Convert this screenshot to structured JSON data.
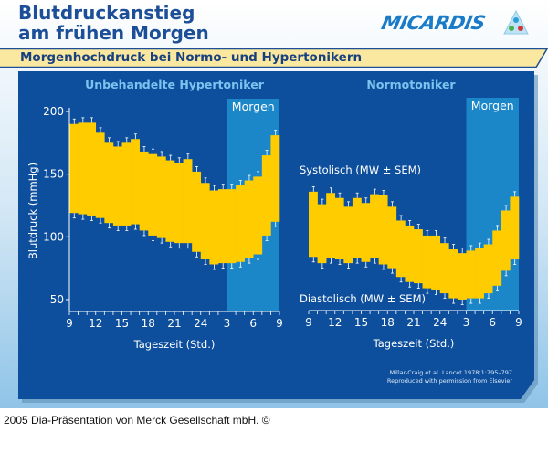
{
  "slide": {
    "title_line1": "Blutdruckanstieg",
    "title_line2": "am frühen Morgen",
    "subtitle": "Morgenhochdruck bei Normo- und Hypertonikern",
    "logo_text": "MICARDIS",
    "citation_line1": "Millar-Craig et al. Lancet 1978;1:795–797",
    "citation_line2": "Reproduced with permission from Elsevier",
    "footer": "2005 Dia-Präsentation von Merck Gesellschaft mbH. ©"
  },
  "colors": {
    "panel": "#0d4f9c",
    "morning_band": "#1b87c9",
    "bp_range": "#ffcc00",
    "title": "#1c4f98",
    "chart_title": "#7cc4ef",
    "banner": "#fbe8a0"
  },
  "chart_data": [
    {
      "type": "area",
      "title": "Unbehandelte Hypertoniker",
      "xlabel": "Tageszeit (Std.)",
      "ylabel": "Blutdruck (mmHg)",
      "ylim": [
        50,
        200
      ],
      "yticks": [
        "200",
        "150",
        "100",
        "50"
      ],
      "xticks": [
        "9",
        "12",
        "15",
        "18",
        "21",
        "24",
        "3",
        "6",
        "9"
      ],
      "hours": [
        9,
        10,
        11,
        12,
        13,
        14,
        15,
        16,
        17,
        18,
        19,
        20,
        21,
        22,
        23,
        24,
        1,
        2,
        3,
        4,
        5,
        6,
        7,
        8
      ],
      "highlight": {
        "label": "Morgen",
        "from": 3,
        "to": 9
      },
      "sem_approx": 4,
      "series": [
        {
          "name": "Systolisch (MW ± SEM)",
          "values": [
            190,
            191,
            191,
            183,
            175,
            172,
            175,
            178,
            168,
            166,
            164,
            161,
            159,
            162,
            152,
            143,
            137,
            138,
            138,
            141,
            145,
            148,
            165,
            181
          ]
        },
        {
          "name": "Diastolisch (MW ± SEM)",
          "values": [
            119,
            118,
            117,
            115,
            111,
            109,
            109,
            110,
            105,
            101,
            99,
            96,
            95,
            95,
            88,
            82,
            78,
            79,
            79,
            80,
            83,
            86,
            101,
            112
          ]
        }
      ],
      "grid": false
    },
    {
      "type": "area",
      "title": "Normotoniker",
      "xlabel": "Tageszeit (Std.)",
      "ylim": [
        50,
        200
      ],
      "xticks": [
        "9",
        "12",
        "15",
        "18",
        "21",
        "24",
        "3",
        "6",
        "9"
      ],
      "hours": [
        9,
        10,
        11,
        12,
        13,
        14,
        15,
        16,
        17,
        18,
        19,
        20,
        21,
        22,
        23,
        24,
        1,
        2,
        3,
        4,
        5,
        6,
        7,
        8
      ],
      "highlight": {
        "label": "Morgen",
        "from": 3,
        "to": 9
      },
      "sem_approx": 4,
      "series_labels": {
        "systolic": "Systolisch (MW ± SEM)",
        "diastolic": "Diastolisch (MW ± SEM)"
      },
      "series": [
        {
          "name": "Systolisch (MW ± SEM)",
          "values": [
            136,
            126,
            135,
            131,
            124,
            131,
            127,
            134,
            133,
            124,
            113,
            109,
            106,
            101,
            101,
            95,
            90,
            87,
            89,
            91,
            94,
            105,
            121,
            132
          ]
        },
        {
          "name": "Diastolisch (MW ± SEM)",
          "values": [
            84,
            79,
            83,
            82,
            79,
            83,
            80,
            83,
            78,
            75,
            68,
            64,
            63,
            59,
            58,
            55,
            51,
            50,
            51,
            51,
            55,
            61,
            73,
            82
          ]
        }
      ],
      "grid": false
    }
  ]
}
